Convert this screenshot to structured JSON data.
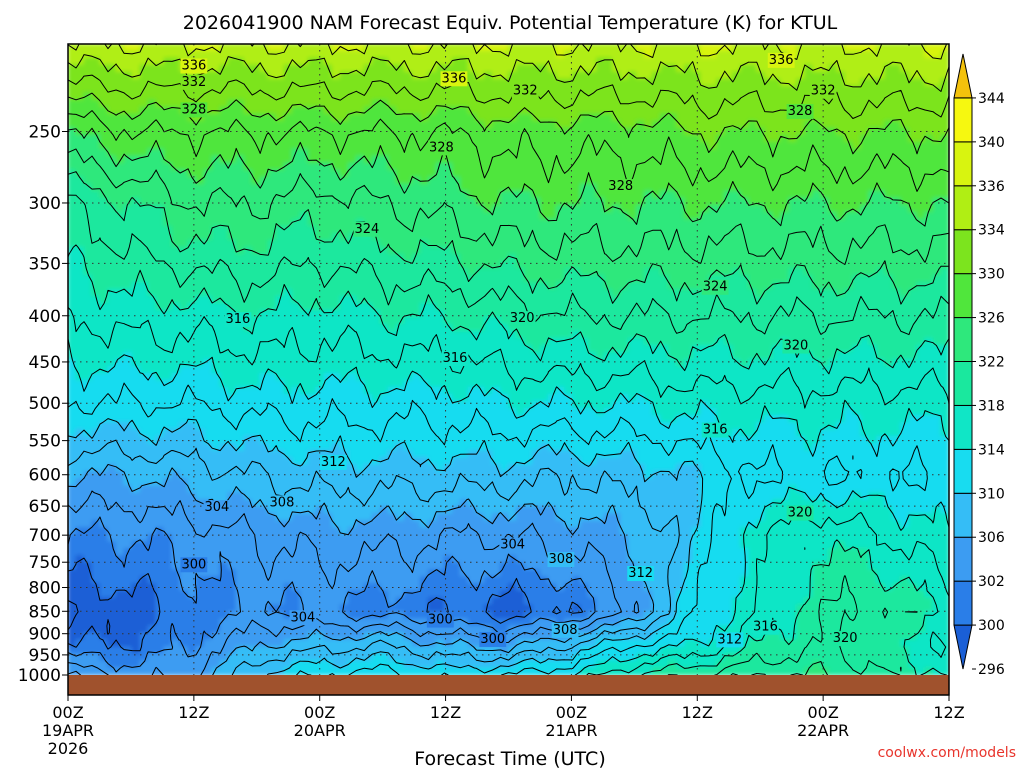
{
  "chart_data": {
    "type": "heatmap",
    "title": "2026041900 NAM Forecast Equiv. Potential Temperature (K) for KTUL",
    "xlabel": "Forecast Time (UTC)",
    "ylabel": "",
    "watermark": "coolwx.com/models",
    "y_ticks": [
      250,
      300,
      350,
      400,
      450,
      500,
      550,
      600,
      650,
      700,
      750,
      800,
      850,
      900,
      950,
      1000
    ],
    "y_range": [
      1000,
      200
    ],
    "x_range_hours": [
      0,
      84
    ],
    "x_ticks": [
      {
        "hour": 0,
        "label": "00Z",
        "sub": "19APR",
        "sub2": "2026"
      },
      {
        "hour": 12,
        "label": "12Z",
        "sub": "",
        "sub2": ""
      },
      {
        "hour": 24,
        "label": "00Z",
        "sub": "20APR",
        "sub2": ""
      },
      {
        "hour": 36,
        "label": "12Z",
        "sub": "",
        "sub2": ""
      },
      {
        "hour": 48,
        "label": "00Z",
        "sub": "21APR",
        "sub2": ""
      },
      {
        "hour": 60,
        "label": "12Z",
        "sub": "",
        "sub2": ""
      },
      {
        "hour": 72,
        "label": "00Z",
        "sub": "22APR",
        "sub2": ""
      },
      {
        "hour": 84,
        "label": "12Z",
        "sub": "",
        "sub2": ""
      }
    ],
    "colorbar": {
      "labels": [
        "296",
        "300",
        "302",
        "306",
        "310",
        "314",
        "318",
        "322",
        "326",
        "330",
        "334",
        "336",
        "340",
        "344"
      ],
      "colors": [
        "#1a5fd6",
        "#2a7ee8",
        "#3c9cf2",
        "#35bdf6",
        "#18dcf0",
        "#10e6c6",
        "#1ae89e",
        "#2ee87c",
        "#50e63c",
        "#7ce41e",
        "#b0ee14",
        "#d8f410",
        "#f6f810",
        "#f4c20c"
      ]
    },
    "profile_x_hours": [
      0,
      6,
      12,
      18,
      24,
      30,
      36,
      42,
      48,
      54,
      60,
      66,
      72,
      78,
      84
    ],
    "profile_levels_hpa": [
      1000,
      925,
      850,
      700,
      600,
      500,
      400,
      300,
      250,
      200
    ],
    "theta_e_K": [
      [
        306,
        303,
        304,
        310,
        312,
        313,
        311,
        312,
        314,
        318,
        320,
        322,
        322,
        320,
        318
      ],
      [
        300,
        300,
        302,
        306,
        307,
        308,
        306,
        305,
        308,
        312,
        314,
        318,
        320,
        318,
        316
      ],
      [
        298,
        299,
        301,
        302,
        302,
        301,
        300,
        299,
        300,
        304,
        312,
        316,
        320,
        320,
        318
      ],
      [
        302,
        302,
        303,
        304,
        305,
        305,
        304,
        304,
        305,
        306,
        310,
        316,
        318,
        316,
        314
      ],
      [
        306,
        306,
        307,
        308,
        309,
        309,
        309,
        309,
        308,
        309,
        310,
        312,
        312,
        312,
        312
      ],
      [
        312,
        312,
        312,
        313,
        313,
        313,
        313,
        314,
        314,
        314,
        315,
        315,
        315,
        315,
        315
      ],
      [
        316,
        317,
        317,
        318,
        317,
        318,
        318,
        319,
        320,
        320,
        320,
        320,
        320,
        320,
        320
      ],
      [
        320,
        322,
        324,
        324,
        323,
        324,
        325,
        326,
        326,
        326,
        326,
        326,
        326,
        326,
        326
      ],
      [
        326,
        328,
        328,
        328,
        328,
        328,
        328,
        329,
        329,
        329,
        330,
        330,
        330,
        330,
        330
      ],
      [
        336,
        336,
        336,
        336,
        336,
        336,
        336,
        336,
        336,
        336,
        336,
        336,
        336,
        336,
        336
      ]
    ],
    "contour_labels": [
      {
        "text": "336",
        "hour": 12.0,
        "p": 211
      },
      {
        "text": "332",
        "hour": 12.0,
        "p": 220
      },
      {
        "text": "336",
        "hour": 36.8,
        "p": 218
      },
      {
        "text": "332",
        "hour": 43.6,
        "p": 225
      },
      {
        "text": "336",
        "hour": 68.0,
        "p": 208
      },
      {
        "text": "332",
        "hour": 72.0,
        "p": 225
      },
      {
        "text": "328",
        "hour": 12.0,
        "p": 236
      },
      {
        "text": "328",
        "hour": 35.6,
        "p": 260
      },
      {
        "text": "328",
        "hour": 52.7,
        "p": 287
      },
      {
        "text": "328",
        "hour": 69.8,
        "p": 237
      },
      {
        "text": "324",
        "hour": 28.5,
        "p": 320
      },
      {
        "text": "324",
        "hour": 61.7,
        "p": 371
      },
      {
        "text": "316",
        "hour": 16.2,
        "p": 403
      },
      {
        "text": "320",
        "hour": 43.3,
        "p": 402
      },
      {
        "text": "316",
        "hour": 36.9,
        "p": 445
      },
      {
        "text": "320",
        "hour": 69.4,
        "p": 431
      },
      {
        "text": "316",
        "hour": 61.7,
        "p": 534
      },
      {
        "text": "312",
        "hour": 25.3,
        "p": 580
      },
      {
        "text": "308",
        "hour": 20.4,
        "p": 643
      },
      {
        "text": "304",
        "hour": 14.2,
        "p": 651
      },
      {
        "text": "304",
        "hour": 42.4,
        "p": 716
      },
      {
        "text": "308",
        "hour": 47.0,
        "p": 743
      },
      {
        "text": "312",
        "hour": 54.6,
        "p": 770
      },
      {
        "text": "300",
        "hour": 12.0,
        "p": 753
      },
      {
        "text": "304",
        "hour": 22.4,
        "p": 862
      },
      {
        "text": "300",
        "hour": 35.5,
        "p": 867
      },
      {
        "text": "308",
        "hour": 47.4,
        "p": 890
      },
      {
        "text": "300",
        "hour": 40.5,
        "p": 911
      },
      {
        "text": "320",
        "hour": 69.8,
        "p": 660
      },
      {
        "text": "316",
        "hour": 66.5,
        "p": 883
      },
      {
        "text": "312",
        "hour": 63.1,
        "p": 912
      },
      {
        "text": "320",
        "hour": 74.1,
        "p": 909
      }
    ]
  }
}
